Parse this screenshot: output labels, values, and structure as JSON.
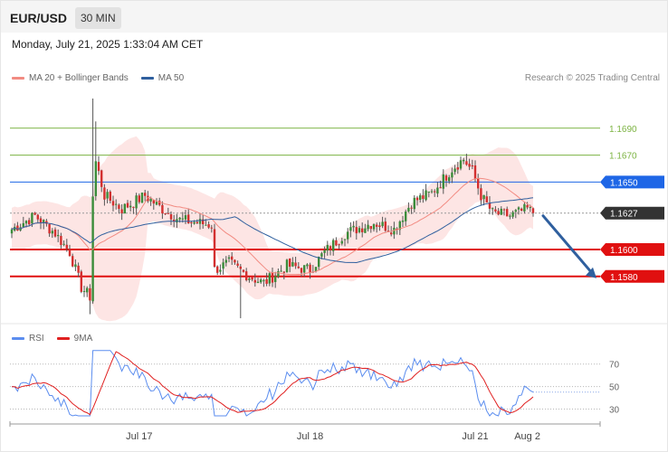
{
  "header": {
    "symbol": "EUR/USD",
    "timeframe": "30 MIN",
    "datetime": "Monday, July 21, 2025 1:33:04 AM CET",
    "credit": "Research © 2025 Trading Central"
  },
  "legend": {
    "ma20": {
      "label": "MA 20 + Bollinger Bands",
      "color": "#f28b82"
    },
    "ma50": {
      "label": "MA 50",
      "color": "#2f5f9e"
    },
    "rsi": {
      "label": "RSI",
      "color": "#5b8def"
    },
    "rsi_ma": {
      "label": "9MA",
      "color": "#e02020"
    }
  },
  "chart_data": [
    {
      "type": "candlestick",
      "ylim": [
        1.1545,
        1.1718
      ],
      "levels": [
        {
          "value": 1.169,
          "label": "1.1690",
          "style": "resistance-thin",
          "color": "#7cb342"
        },
        {
          "value": 1.167,
          "label": "1.1670",
          "style": "resistance-thin",
          "color": "#7cb342"
        },
        {
          "value": 1.165,
          "label": "1.1650",
          "style": "pivot",
          "color": "#1e66e6"
        },
        {
          "value": 1.1627,
          "label": "1.1627",
          "style": "last-price",
          "color": "#333333"
        },
        {
          "value": 1.16,
          "label": "1.1600",
          "style": "support",
          "color": "#e01010"
        },
        {
          "value": 1.158,
          "label": "1.1580",
          "style": "support",
          "color": "#e01010"
        }
      ],
      "x_ticks": [
        {
          "label": "Jul 17",
          "index": 44
        },
        {
          "label": "Jul 18",
          "index": 103
        },
        {
          "label": "Jul 21",
          "index": 160
        },
        {
          "label": "Aug 2",
          "index": 178
        }
      ],
      "forecast_arrow": {
        "from_price": 1.1625,
        "to_price": 1.158,
        "color": "#2f5f9e"
      }
    },
    {
      "type": "line",
      "name": "RSI",
      "ylim": [
        20,
        85
      ],
      "ticks": [
        70,
        50,
        30
      ]
    }
  ]
}
